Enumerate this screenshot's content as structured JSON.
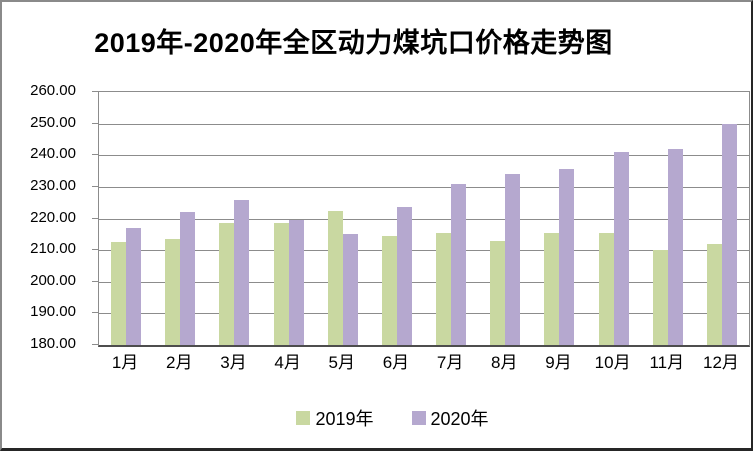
{
  "chart_data": {
    "type": "bar",
    "title": "2019年-2020年全区动力煤坑口价格走势图",
    "categories": [
      "1月",
      "2月",
      "3月",
      "4月",
      "5月",
      "6月",
      "7月",
      "8月",
      "9月",
      "10月",
      "11月",
      "12月"
    ],
    "series": [
      {
        "name": "2019年",
        "color": "#c9d8a1",
        "values": [
          212.5,
          213.5,
          218.5,
          218.5,
          222.5,
          214.5,
          215.5,
          213.0,
          215.5,
          215.5,
          210.0,
          212.0
        ]
      },
      {
        "name": "2020年",
        "color": "#b5a8cf",
        "values": [
          217.0,
          222.0,
          226.0,
          219.5,
          215.0,
          223.5,
          231.0,
          234.0,
          235.5,
          241.0,
          242.0,
          250.0
        ]
      }
    ],
    "xlabel": "",
    "ylabel": "",
    "ylim": [
      180,
      260
    ],
    "ytick_step": 10,
    "yticks": [
      "260.00",
      "250.00",
      "240.00",
      "230.00",
      "220.00",
      "210.00",
      "200.00",
      "190.00",
      "180.00"
    ],
    "grid": true,
    "gridline_color": "#8c8c8c",
    "axis_color": "#4d4d4d",
    "legend_position": "bottom"
  }
}
